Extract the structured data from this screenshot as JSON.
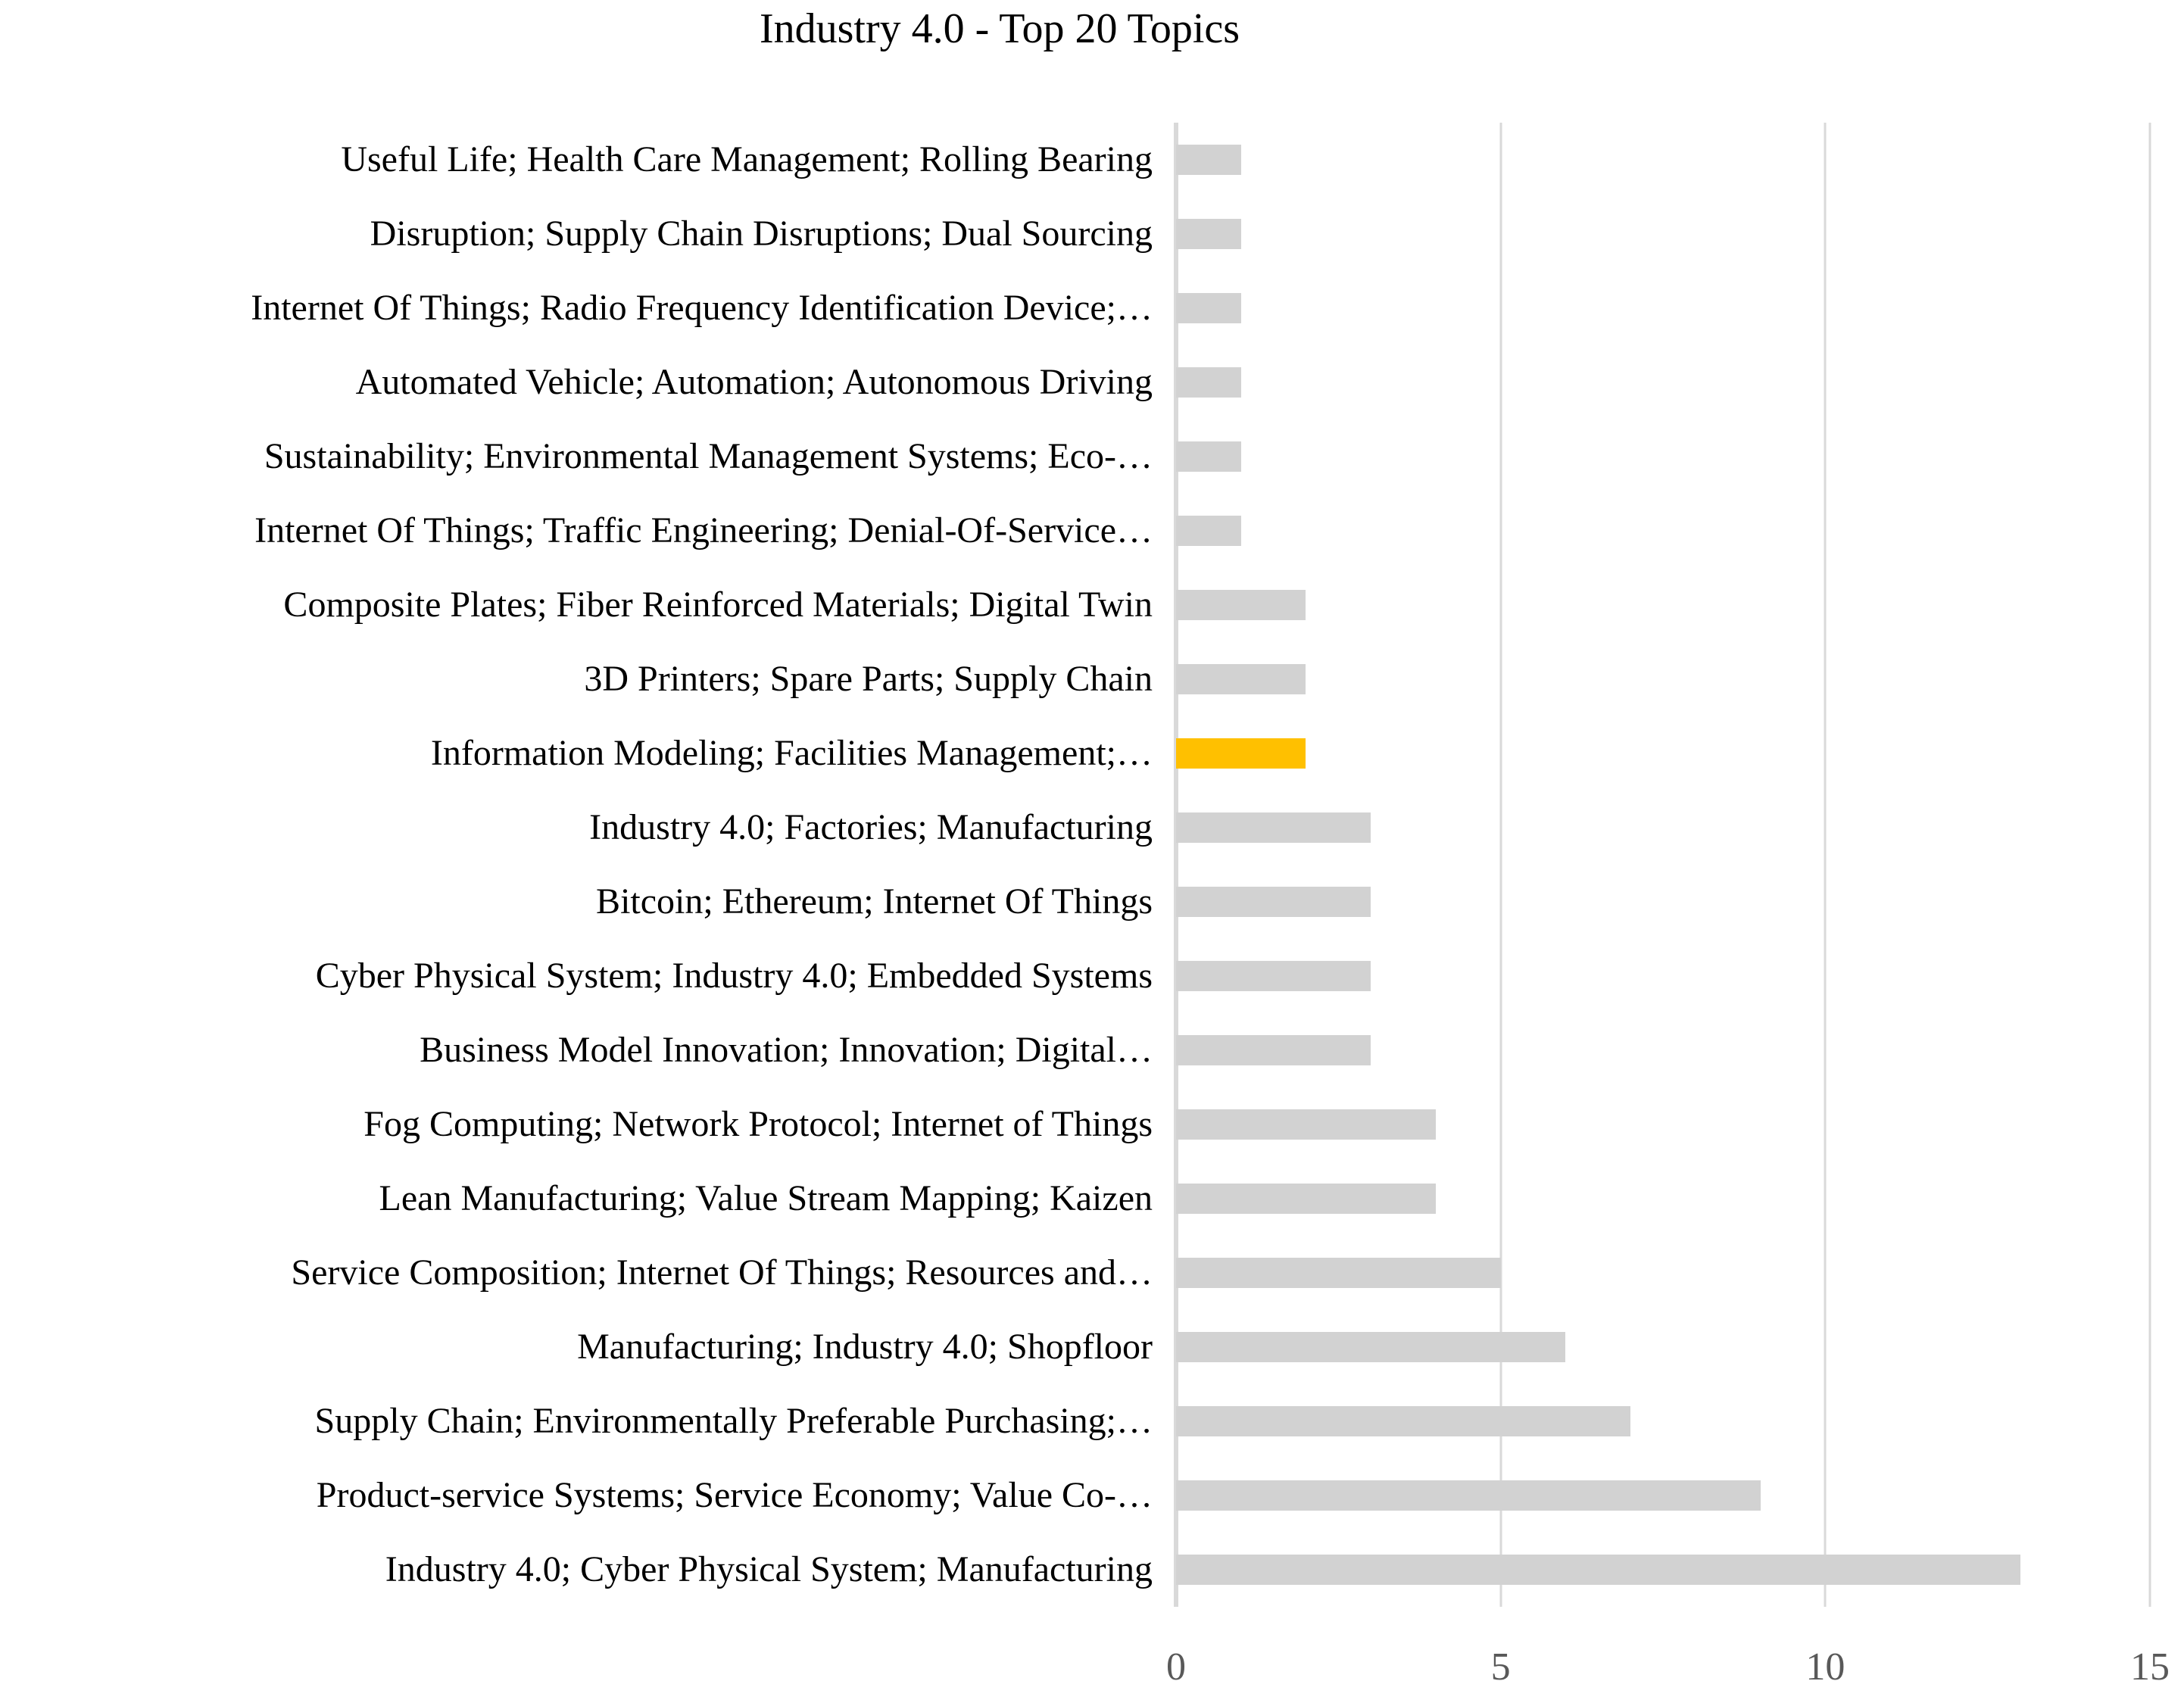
{
  "chart_data": {
    "type": "bar",
    "orientation": "horizontal",
    "title": "Industry 4.0 - Top 20 Topics",
    "categories": [
      "Useful Life; Health Care Management; Rolling Bearing",
      "Disruption; Supply Chain Disruptions; Dual Sourcing",
      "Internet Of Things; Radio Frequency Identification Device;…",
      "Automated Vehicle; Automation; Autonomous Driving",
      "Sustainability; Environmental Management Systems; Eco-…",
      "Internet Of Things; Traffic Engineering; Denial-Of-Service…",
      "Composite Plates; Fiber Reinforced Materials; Digital Twin",
      "3D Printers; Spare Parts; Supply Chain",
      "Information Modeling; Facilities Management;…",
      "Industry 4.0; Factories; Manufacturing",
      "Bitcoin; Ethereum; Internet Of Things",
      "Cyber Physical System; Industry 4.0; Embedded Systems",
      "Business Model Innovation; Innovation; Digital…",
      "Fog Computing; Network Protocol; Internet of Things",
      "Lean Manufacturing; Value Stream Mapping; Kaizen",
      "Service Composition; Internet Of Things; Resources and…",
      "Manufacturing; Industry 4.0; Shopfloor",
      "Supply Chain; Environmentally Preferable Purchasing;…",
      "Product-service Systems; Service Economy; Value Co-…",
      "Industry 4.0; Cyber Physical System; Manufacturing"
    ],
    "values": [
      1,
      1,
      1,
      1,
      1,
      1,
      2,
      2,
      2,
      3,
      3,
      3,
      3,
      4,
      4,
      5,
      6,
      7,
      9,
      13
    ],
    "highlight_index": 8,
    "xlabel": "",
    "ylabel": "",
    "xlim": [
      0,
      15
    ],
    "x_ticks": [
      "0",
      "5",
      "10",
      "15"
    ],
    "grid": true,
    "legend": false
  },
  "colors": {
    "bar": "#D2D2D2",
    "highlight": "#FFC000",
    "gridline": "#D9D9D9",
    "axis_line": "#D9D9D9",
    "tick_label": "#595959",
    "label_text": "#000000",
    "background": "#FFFFFF"
  }
}
